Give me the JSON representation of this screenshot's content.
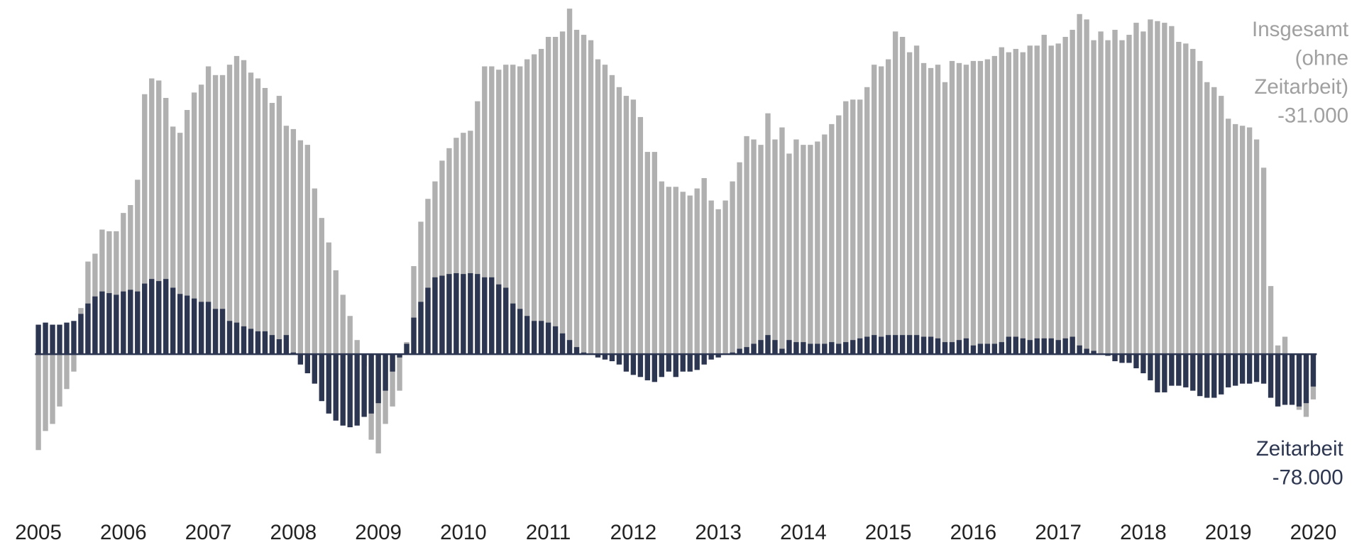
{
  "chart_data": {
    "type": "bar",
    "categories": [
      "2005",
      null,
      null,
      null,
      null,
      null,
      null,
      null,
      null,
      null,
      null,
      null,
      "2006",
      null,
      null,
      null,
      null,
      null,
      null,
      null,
      null,
      null,
      null,
      null,
      "2007",
      null,
      null,
      null,
      null,
      null,
      null,
      null,
      null,
      null,
      null,
      null,
      "2008",
      null,
      null,
      null,
      null,
      null,
      null,
      null,
      null,
      null,
      null,
      null,
      "2009",
      null,
      null,
      null,
      null,
      null,
      null,
      null,
      null,
      null,
      null,
      null,
      "2010",
      null,
      null,
      null,
      null,
      null,
      null,
      null,
      null,
      null,
      null,
      null,
      "2011",
      null,
      null,
      null,
      null,
      null,
      null,
      null,
      null,
      null,
      null,
      null,
      "2012",
      null,
      null,
      null,
      null,
      null,
      null,
      null,
      null,
      null,
      null,
      null,
      "2013",
      null,
      null,
      null,
      null,
      null,
      null,
      null,
      null,
      null,
      null,
      null,
      "2014",
      null,
      null,
      null,
      null,
      null,
      null,
      null,
      null,
      null,
      null,
      null,
      "2015",
      null,
      null,
      null,
      null,
      null,
      null,
      null,
      null,
      null,
      null,
      null,
      "2016",
      null,
      null,
      null,
      null,
      null,
      null,
      null,
      null,
      null,
      null,
      null,
      "2017",
      null,
      null,
      null,
      null,
      null,
      null,
      null,
      null,
      null,
      null,
      null,
      "2018",
      null,
      null,
      null,
      null,
      null,
      null,
      null,
      null,
      null,
      null,
      null,
      "2019",
      null,
      null,
      null,
      null,
      null,
      null,
      null,
      null,
      null,
      null,
      null,
      "2020"
    ],
    "series": [
      {
        "color": "#b0b0b0",
        "values": [
          -231000,
          -185000,
          -168000,
          -126000,
          -84000,
          -42000,
          111000,
          223000,
          242000,
          300000,
          296000,
          296000,
          340000,
          359000,
          420000,
          626000,
          664000,
          659000,
          617000,
          548000,
          533000,
          588000,
          630000,
          649000,
          693000,
          672000,
          672000,
          697000,
          718000,
          708000,
          678000,
          664000,
          641000,
          605000,
          622000,
          550000,
          542000,
          515000,
          504000,
          399000,
          328000,
          269000,
          202000,
          143000,
          92000,
          34000,
          -29000,
          -206000,
          -239000,
          -168000,
          -126000,
          -88000,
          29000,
          212000,
          319000,
          374000,
          416000,
          466000,
          496000,
          521000,
          533000,
          538000,
          609000,
          693000,
          693000,
          685000,
          697000,
          697000,
          693000,
          710000,
          722000,
          735000,
          764000,
          764000,
          777000,
          832000,
          781000,
          769000,
          756000,
          710000,
          697000,
          672000,
          643000,
          622000,
          613000,
          571000,
          487000,
          487000,
          416000,
          403000,
          403000,
          391000,
          382000,
          399000,
          424000,
          370000,
          349000,
          370000,
          416000,
          462000,
          525000,
          517000,
          504000,
          580000,
          517000,
          546000,
          483000,
          517000,
          504000,
          504000,
          512000,
          529000,
          554000,
          575000,
          609000,
          613000,
          613000,
          643000,
          697000,
          693000,
          710000,
          777000,
          764000,
          727000,
          743000,
          701000,
          689000,
          697000,
          655000,
          706000,
          701000,
          697000,
          706000,
          706000,
          710000,
          718000,
          739000,
          727000,
          735000,
          727000,
          743000,
          743000,
          769000,
          743000,
          748000,
          764000,
          781000,
          819000,
          806000,
          756000,
          777000,
          756000,
          781000,
          756000,
          769000,
          798000,
          777000,
          806000,
          802000,
          798000,
          790000,
          752000,
          748000,
          735000,
          706000,
          655000,
          643000,
          622000,
          567000,
          554000,
          550000,
          546000,
          517000,
          449000,
          164000,
          21000,
          42000,
          -8000,
          -134000,
          -151000,
          -109000
        ]
      },
      {
        "color": "#2d3650",
        "values": [
          71000,
          76000,
          71000,
          71000,
          76000,
          80000,
          97000,
          122000,
          139000,
          151000,
          147000,
          143000,
          151000,
          155000,
          151000,
          170000,
          181000,
          176000,
          181000,
          160000,
          145000,
          141000,
          134000,
          126000,
          126000,
          109000,
          109000,
          80000,
          76000,
          67000,
          61000,
          55000,
          55000,
          46000,
          36000,
          46000,
          4000,
          -25000,
          -46000,
          -71000,
          -113000,
          -143000,
          -160000,
          -172000,
          -176000,
          -172000,
          -151000,
          -143000,
          -118000,
          -88000,
          -42000,
          -8000,
          25000,
          88000,
          126000,
          160000,
          185000,
          189000,
          193000,
          195000,
          193000,
          195000,
          193000,
          185000,
          185000,
          168000,
          160000,
          122000,
          109000,
          92000,
          80000,
          80000,
          76000,
          67000,
          50000,
          34000,
          17000,
          4000,
          0,
          -8000,
          -13000,
          -17000,
          -25000,
          -42000,
          -50000,
          -55000,
          -63000,
          -67000,
          -55000,
          -42000,
          -55000,
          -42000,
          -42000,
          -38000,
          -25000,
          -13000,
          -8000,
          0,
          4000,
          13000,
          17000,
          25000,
          34000,
          46000,
          34000,
          13000,
          34000,
          29000,
          29000,
          25000,
          25000,
          25000,
          29000,
          25000,
          29000,
          34000,
          38000,
          42000,
          46000,
          42000,
          46000,
          46000,
          46000,
          46000,
          46000,
          42000,
          42000,
          38000,
          29000,
          29000,
          34000,
          38000,
          21000,
          25000,
          25000,
          25000,
          29000,
          42000,
          42000,
          38000,
          34000,
          38000,
          38000,
          38000,
          34000,
          38000,
          42000,
          21000,
          13000,
          8000,
          0,
          -4000,
          -17000,
          -21000,
          -21000,
          -34000,
          -46000,
          -63000,
          -92000,
          -92000,
          -76000,
          -76000,
          -80000,
          -88000,
          -101000,
          -105000,
          -105000,
          -97000,
          -80000,
          -76000,
          -71000,
          -71000,
          -67000,
          -71000,
          -105000,
          -126000,
          -122000,
          -122000,
          -126000,
          -118000,
          -78000
        ]
      }
    ],
    "ylim": [
      -360000,
      850000
    ],
    "annotations": [
      {
        "color": "#a0a0a0",
        "lines": [
          "Insgesamt",
          "(ohne",
          "Zeitarbeit)",
          "-31.000"
        ]
      },
      {
        "color": "#2d3650",
        "lines": [
          "Zeitarbeit",
          "-78.000"
        ]
      }
    ]
  }
}
